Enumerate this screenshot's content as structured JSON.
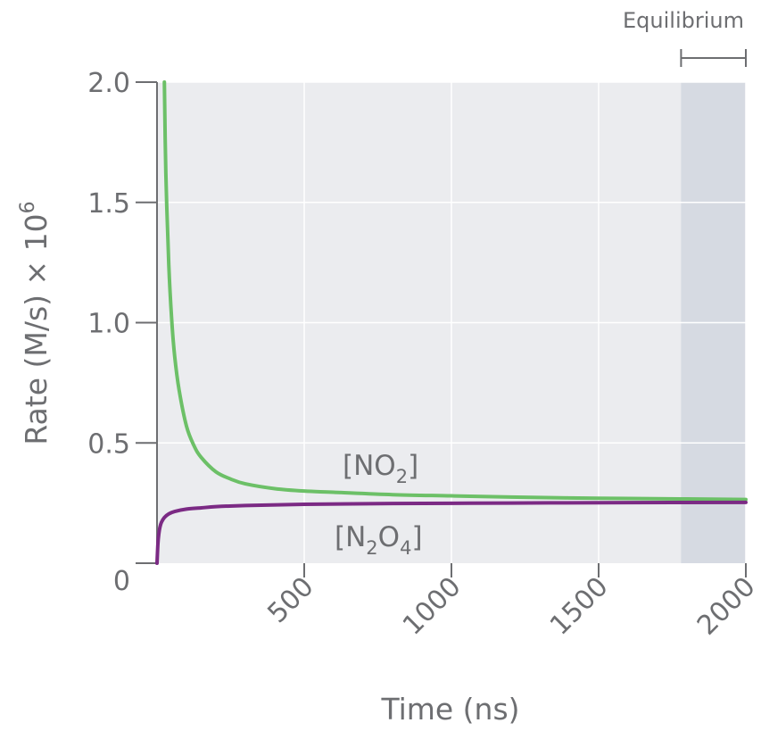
{
  "chart_data": {
    "type": "line",
    "xlabel": "Time (ns)",
    "ylabel_main": "Rate (M/s) × 10",
    "ylabel_exp": "6",
    "xlim": [
      0,
      2000
    ],
    "ylim": [
      0,
      2.0
    ],
    "x_ticks": [
      500,
      1000,
      1500,
      2000
    ],
    "x_tick_labels": [
      "500",
      "1000",
      "1500",
      "2000"
    ],
    "y_ticks": [
      0,
      0.5,
      1.0,
      1.5,
      2.0
    ],
    "y_tick_labels": [
      "0",
      "0.5",
      "1.0",
      "1.5",
      "2.0"
    ],
    "grid": true,
    "annotation": {
      "text": "Equilibrium",
      "x_start": 1780,
      "x_end": 2000
    },
    "series": [
      {
        "name_main": "[NO",
        "name_sub": "2",
        "name_end": "]",
        "color": "#6cc067",
        "x": [
          25,
          30,
          40,
          50,
          60,
          75,
          100,
          125,
          150,
          200,
          250,
          300,
          400,
          500,
          600,
          800,
          1000,
          1200,
          1500,
          1800,
          2000
        ],
        "y": [
          2.0,
          1.62,
          1.24,
          1.01,
          0.86,
          0.72,
          0.57,
          0.49,
          0.44,
          0.38,
          0.35,
          0.33,
          0.31,
          0.3,
          0.295,
          0.285,
          0.28,
          0.275,
          0.27,
          0.267,
          0.265
        ]
      },
      {
        "name_main": "[N",
        "name_sub": "2",
        "name_mid": "O",
        "name_sub2": "4",
        "name_end": "]",
        "color": "#7b2a84",
        "x": [
          0,
          3,
          6,
          10,
          15,
          25,
          40,
          60,
          100,
          150,
          200,
          300,
          500,
          800,
          1200,
          1600,
          2000
        ],
        "y": [
          0,
          0.08,
          0.12,
          0.15,
          0.17,
          0.19,
          0.205,
          0.215,
          0.225,
          0.23,
          0.235,
          0.24,
          0.245,
          0.248,
          0.25,
          0.252,
          0.253
        ]
      }
    ]
  }
}
